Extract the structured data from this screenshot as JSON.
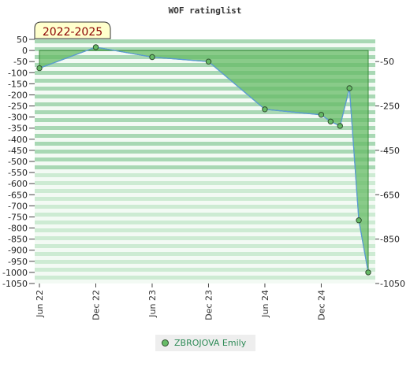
{
  "chart_data": {
    "type": "area",
    "title": "WOF ratinglist",
    "range_label": "2022-2025",
    "x_tick_labels": [
      "Jun 22",
      "Dec 22",
      "Jun 23",
      "Dec 23",
      "Jun 24",
      "Dec 24"
    ],
    "x_tick_dates": [
      "2022-06",
      "2022-12",
      "2023-06",
      "2023-12",
      "2024-06",
      "2024-12"
    ],
    "y_left": {
      "ylim": [
        -1050,
        50
      ],
      "ticks": [
        50,
        0,
        -50,
        -100,
        -150,
        -200,
        -250,
        -300,
        -350,
        -400,
        -450,
        -500,
        -550,
        -600,
        -650,
        -700,
        -750,
        -800,
        -850,
        -900,
        -950,
        -1000,
        -1050
      ]
    },
    "y_right": {
      "ticks": [
        -50,
        -250,
        -450,
        -650,
        -850,
        -1050
      ]
    },
    "series": [
      {
        "name": "ZBROJOVA Emily",
        "color": "#66bb66",
        "line_color": "#5b9bd5",
        "points": [
          {
            "x": "2022-06",
            "y": -80
          },
          {
            "x": "2022-12",
            "y": 15
          },
          {
            "x": "2023-06",
            "y": -30
          },
          {
            "x": "2023-12",
            "y": -50
          },
          {
            "x": "2024-06",
            "y": -265
          },
          {
            "x": "2024-12",
            "y": -290
          },
          {
            "x": "2025-01",
            "y": -320
          },
          {
            "x": "2025-02",
            "y": -340
          },
          {
            "x": "2025-03",
            "y": -170
          },
          {
            "x": "2025-04",
            "y": -765
          },
          {
            "x": "2025-05",
            "y": -1000
          }
        ]
      }
    ],
    "grid": true,
    "legend_position": "bottom"
  }
}
